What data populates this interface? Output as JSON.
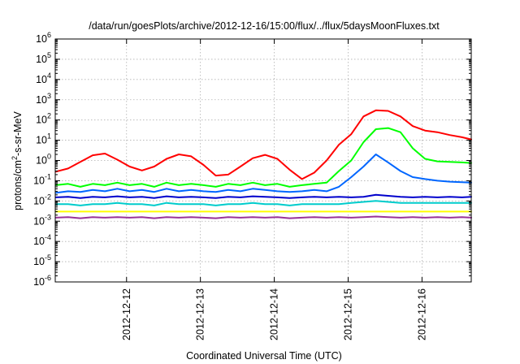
{
  "chart_data": {
    "type": "line",
    "title": "/data/run/goesPlots/archive/2012-12-16/15:00/flux/../flux/5daysMoonFluxes.txt",
    "xlabel": "Coordinated Universal Time (UTC)",
    "ylabel": "protons/cm²-s-sr-MeV",
    "ylabel_parts": {
      "before": "protons/cm",
      "sup": "2",
      "after": "-s-sr-MeV"
    },
    "yscale": "log",
    "ylim": [
      1e-06,
      1000000.0
    ],
    "y_ticks": [
      {
        "base": "10",
        "exp": "-6",
        "value": 1e-06
      },
      {
        "base": "10",
        "exp": "-5",
        "value": 1e-05
      },
      {
        "base": "10",
        "exp": "-4",
        "value": 0.0001
      },
      {
        "base": "10",
        "exp": "-3",
        "value": 0.001
      },
      {
        "base": "10",
        "exp": "-2",
        "value": 0.01
      },
      {
        "base": "10",
        "exp": "-1",
        "value": 0.1
      },
      {
        "base": "10",
        "exp": "0",
        "value": 1
      },
      {
        "base": "10",
        "exp": "1",
        "value": 10
      },
      {
        "base": "10",
        "exp": "2",
        "value": 100
      },
      {
        "base": "10",
        "exp": "3",
        "value": 1000
      },
      {
        "base": "10",
        "exp": "4",
        "value": 10000
      },
      {
        "base": "10",
        "exp": "5",
        "value": 100000
      },
      {
        "base": "10",
        "exp": "6",
        "value": 1000000
      }
    ],
    "xlim": [
      "2012-12-11 00:50",
      "2012-12-16 16:00"
    ],
    "x_ticks": [
      "2012-12-12",
      "2012-12-13",
      "2012-12-14",
      "2012-12-15",
      "2012-12-16"
    ],
    "grid": true,
    "x": [
      "12-11 01:00",
      "12-11 05:00",
      "12-11 09:00",
      "12-11 13:00",
      "12-11 17:00",
      "12-11 21:00",
      "12-12 01:00",
      "12-12 05:00",
      "12-12 09:00",
      "12-12 13:00",
      "12-12 17:00",
      "12-12 21:00",
      "12-13 01:00",
      "12-13 05:00",
      "12-13 09:00",
      "12-13 13:00",
      "12-13 17:00",
      "12-13 21:00",
      "12-14 01:00",
      "12-14 05:00",
      "12-14 09:00",
      "12-14 13:00",
      "12-14 17:00",
      "12-14 21:00",
      "12-15 01:00",
      "12-15 05:00",
      "12-15 09:00",
      "12-15 13:00",
      "12-15 17:00",
      "12-15 21:00",
      "12-16 01:00",
      "12-16 05:00",
      "12-16 09:00",
      "12-16 13:00",
      "12-16 16:00"
    ],
    "series": [
      {
        "color": "#ff0000",
        "values": [
          0.28,
          0.4,
          0.85,
          1.8,
          2.2,
          1.1,
          0.5,
          0.32,
          0.5,
          1.2,
          2.0,
          1.6,
          0.6,
          0.18,
          0.2,
          0.5,
          1.3,
          1.9,
          1.2,
          0.35,
          0.12,
          0.25,
          1.0,
          6.0,
          20,
          150,
          300,
          280,
          150,
          50,
          30,
          25,
          18,
          14,
          11
        ]
      },
      {
        "color": "#00ff00",
        "values": [
          0.06,
          0.07,
          0.05,
          0.07,
          0.06,
          0.08,
          0.06,
          0.07,
          0.05,
          0.08,
          0.06,
          0.07,
          0.06,
          0.05,
          0.07,
          0.06,
          0.08,
          0.06,
          0.07,
          0.05,
          0.06,
          0.07,
          0.08,
          0.3,
          1.0,
          8.0,
          35,
          40,
          25,
          4,
          1.2,
          0.9,
          0.85,
          0.8,
          0.75
        ]
      },
      {
        "color": "#0066ff",
        "values": [
          0.025,
          0.03,
          0.028,
          0.035,
          0.03,
          0.04,
          0.03,
          0.035,
          0.028,
          0.04,
          0.03,
          0.035,
          0.03,
          0.028,
          0.035,
          0.03,
          0.04,
          0.035,
          0.03,
          0.028,
          0.03,
          0.035,
          0.03,
          0.05,
          0.15,
          0.5,
          2.0,
          0.8,
          0.3,
          0.15,
          0.12,
          0.1,
          0.09,
          0.085,
          0.08
        ]
      },
      {
        "color": "#0000cc",
        "values": [
          0.015,
          0.016,
          0.014,
          0.016,
          0.015,
          0.017,
          0.015,
          0.016,
          0.014,
          0.017,
          0.015,
          0.016,
          0.015,
          0.014,
          0.016,
          0.015,
          0.017,
          0.016,
          0.015,
          0.014,
          0.015,
          0.016,
          0.015,
          0.016,
          0.015,
          0.016,
          0.02,
          0.018,
          0.016,
          0.015,
          0.016,
          0.015,
          0.016,
          0.015,
          0.016
        ]
      },
      {
        "color": "#00cccc",
        "values": [
          0.007,
          0.007,
          0.006,
          0.007,
          0.007,
          0.008,
          0.007,
          0.007,
          0.006,
          0.008,
          0.007,
          0.007,
          0.007,
          0.006,
          0.007,
          0.007,
          0.008,
          0.007,
          0.007,
          0.006,
          0.007,
          0.007,
          0.007,
          0.007,
          0.008,
          0.009,
          0.01,
          0.009,
          0.008,
          0.008,
          0.008,
          0.008,
          0.008,
          0.008,
          0.008
        ]
      },
      {
        "color": "#ffff00",
        "values": [
          0.003,
          0.003,
          0.003,
          0.003,
          0.003,
          0.003,
          0.003,
          0.003,
          0.003,
          0.003,
          0.003,
          0.003,
          0.003,
          0.003,
          0.003,
          0.003,
          0.003,
          0.003,
          0.003,
          0.003,
          0.003,
          0.003,
          0.003,
          0.003,
          0.003,
          0.003,
          0.003,
          0.003,
          0.003,
          0.003,
          0.003,
          0.003,
          0.003,
          0.003,
          0.003
        ]
      },
      {
        "color": "#993399",
        "values": [
          0.0015,
          0.0016,
          0.0014,
          0.0016,
          0.0015,
          0.0016,
          0.0015,
          0.0016,
          0.0014,
          0.0016,
          0.0015,
          0.0016,
          0.0015,
          0.0014,
          0.0016,
          0.0015,
          0.0016,
          0.0015,
          0.0016,
          0.0014,
          0.0015,
          0.0016,
          0.0015,
          0.0016,
          0.0015,
          0.0016,
          0.0017,
          0.0016,
          0.0015,
          0.0016,
          0.0015,
          0.0016,
          0.0015,
          0.0016,
          0.0015
        ]
      }
    ]
  }
}
